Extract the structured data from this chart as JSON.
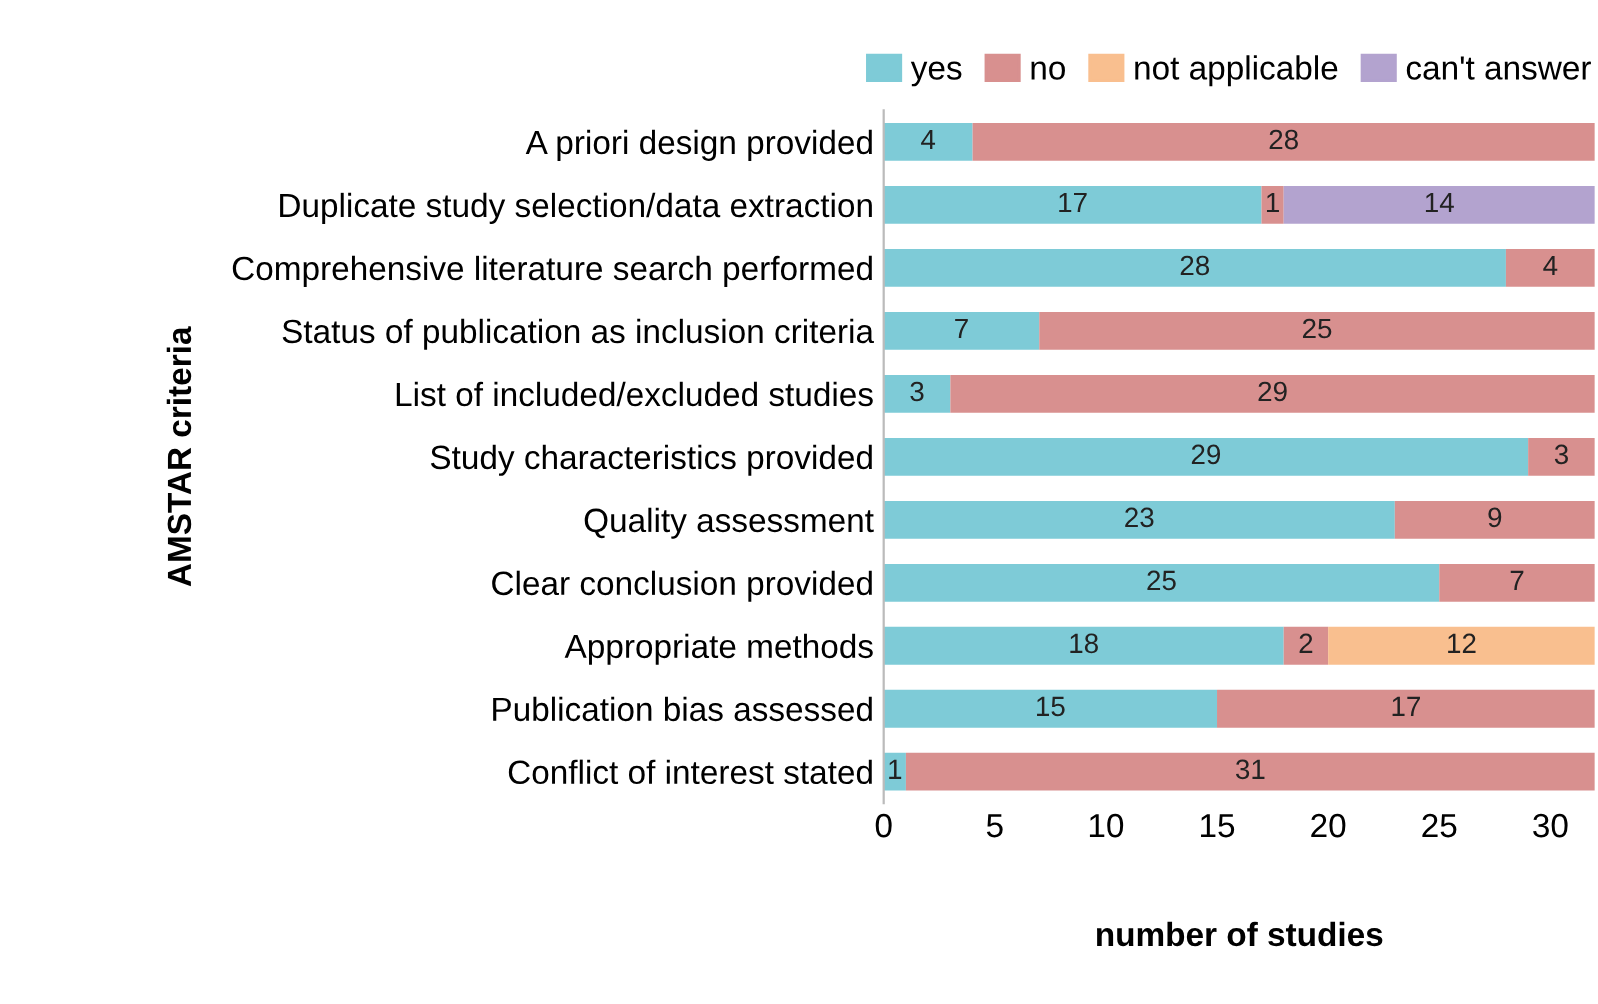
{
  "chart_data": {
    "type": "bar",
    "orientation": "horizontal",
    "stacked": true,
    "xlabel": "number of studies",
    "ylabel": "AMSTAR criteria",
    "categories": [
      "A priori design provided",
      "Duplicate study selection/data extraction",
      "Comprehensive literature search performed",
      "Status of publication as inclusion criteria",
      "List of included/excluded studies",
      "Study characteristics provided",
      "Quality assessment",
      "Clear conclusion provided",
      "Appropriate methods",
      "Publication bias assessed",
      "Conflict of interest stated"
    ],
    "series": [
      {
        "name": "yes",
        "color": "#7ecbd7",
        "values": [
          4,
          17,
          28,
          7,
          3,
          29,
          23,
          25,
          18,
          15,
          1
        ]
      },
      {
        "name": "no",
        "color": "#d8908f",
        "values": [
          28,
          1,
          4,
          25,
          29,
          3,
          9,
          7,
          2,
          17,
          31
        ]
      },
      {
        "name": "not applicable",
        "color": "#f9bf8f",
        "values": [
          null,
          null,
          null,
          null,
          null,
          null,
          null,
          null,
          12,
          null,
          null
        ]
      },
      {
        "name": "can't answer",
        "color": "#b3a3cf",
        "values": [
          null,
          14,
          null,
          null,
          null,
          null,
          null,
          null,
          null,
          null,
          null
        ]
      }
    ],
    "xlim": [
      0,
      32
    ],
    "xticks": [
      0,
      5,
      10,
      15,
      20,
      25,
      30
    ],
    "grid": false,
    "legend": "top",
    "data_labels": true
  }
}
